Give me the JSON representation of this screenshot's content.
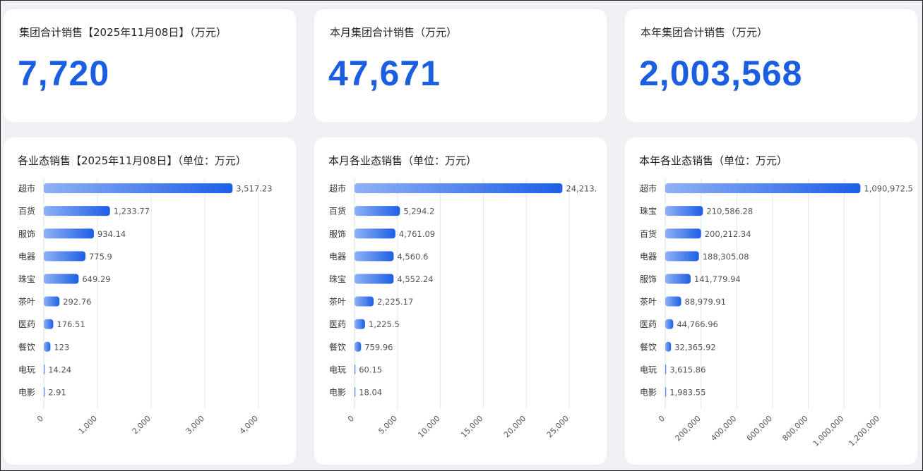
{
  "kpis": [
    {
      "title": "集团合计销售【2025年11月08日】（万元）",
      "value": "7,720"
    },
    {
      "title": "本月集团合计销售（万元）",
      "value": "47,671"
    },
    {
      "title": "本年集团合计销售（万元）",
      "value": "2,003,568"
    }
  ],
  "colors": {
    "bar_start": "#8fb0f5",
    "bar_end": "#1d5fe6",
    "kpi": "#1c5ee0",
    "grid": "#dfe8f0"
  },
  "chart_data": [
    {
      "type": "bar",
      "orientation": "horizontal",
      "title": "各业态销售【2025年11月08日】（单位：万元）",
      "categories": [
        "超市",
        "百货",
        "服饰",
        "电器",
        "珠宝",
        "茶叶",
        "医药",
        "餐饮",
        "电玩",
        "电影"
      ],
      "values": [
        3517.23,
        1233.77,
        934.14,
        775.9,
        649.29,
        292.76,
        176.51,
        123,
        14.24,
        2.91
      ],
      "value_labels": [
        "3,517.23",
        "1,233.77",
        "934.14",
        "775.9",
        "649.29",
        "292.76",
        "176.51",
        "123",
        "14.24",
        "2.91"
      ],
      "xlim": [
        0,
        4000
      ],
      "ticks": [
        0,
        1000,
        2000,
        3000,
        4000
      ],
      "tick_labels": [
        "0",
        "1,000",
        "2,000",
        "3,000",
        "4,000"
      ],
      "grid": true
    },
    {
      "type": "bar",
      "orientation": "horizontal",
      "title": "本月各业态销售（单位：万元）",
      "categories": [
        "超市",
        "百货",
        "服饰",
        "电器",
        "珠宝",
        "茶叶",
        "医药",
        "餐饮",
        "电玩",
        "电影"
      ],
      "values": [
        24213,
        5294.2,
        4761.09,
        4560.6,
        4552.24,
        2225.17,
        1225.5,
        759.96,
        60.15,
        18.04
      ],
      "value_labels": [
        "24,213.",
        "5,294.2",
        "4,761.09",
        "4,560.6",
        "4,552.24",
        "2,225.17",
        "1,225.5",
        "759.96",
        "60.15",
        "18.04"
      ],
      "xlim": [
        0,
        25000
      ],
      "ticks": [
        0,
        5000,
        10000,
        15000,
        20000,
        25000
      ],
      "tick_labels": [
        "0",
        "5,000",
        "10,000",
        "15,000",
        "20,000",
        "25,000"
      ],
      "grid": true
    },
    {
      "type": "bar",
      "orientation": "horizontal",
      "title": "本年各业态销售（单位：万元）",
      "categories": [
        "超市",
        "珠宝",
        "百货",
        "电器",
        "服饰",
        "茶叶",
        "医药",
        "餐饮",
        "电玩",
        "电影"
      ],
      "values": [
        1090972.5,
        210586.28,
        200212.34,
        188305.08,
        141779.94,
        88979.91,
        44766.96,
        32365.92,
        3615.86,
        1983.55
      ],
      "value_labels": [
        "1,090,972.5",
        "210,586.28",
        "200,212.34",
        "188,305.08",
        "141,779.94",
        "88,979.91",
        "44,766.96",
        "32,365.92",
        "3,615.86",
        "1,983.55"
      ],
      "xlim": [
        0,
        1200000
      ],
      "ticks": [
        0,
        200000,
        400000,
        600000,
        800000,
        1000000,
        1200000
      ],
      "tick_labels": [
        "0",
        "200,000",
        "400,000",
        "600,000",
        "800,000",
        "1,000,000",
        "1,200,000"
      ],
      "grid": true
    }
  ]
}
